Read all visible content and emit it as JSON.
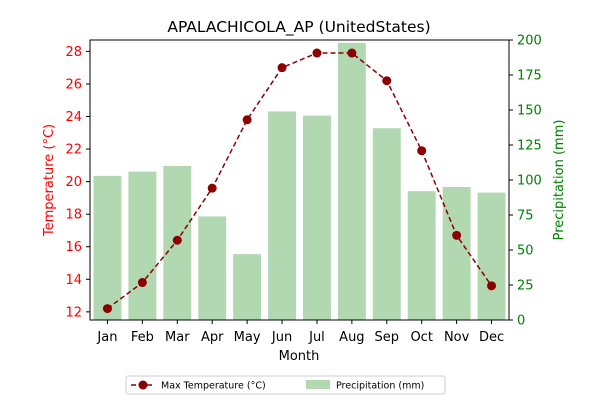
{
  "chart_data": {
    "type": "bar+line",
    "title": "APALACHICOLA_AP (UnitedStates)",
    "xlabel": "Month",
    "ylabel_left": "Temperature (°C)",
    "ylabel_right": "Precipitation (mm)",
    "categories": [
      "Jan",
      "Feb",
      "Mar",
      "Apr",
      "May",
      "Jun",
      "Jul",
      "Aug",
      "Sep",
      "Oct",
      "Nov",
      "Dec"
    ],
    "temperature": {
      "name": "Max Temperature (°C)",
      "type": "line",
      "axis": "left",
      "color": "#8b0000",
      "values": [
        12.2,
        13.8,
        16.4,
        19.6,
        23.8,
        27.0,
        27.9,
        27.9,
        26.2,
        21.9,
        16.7,
        13.6
      ]
    },
    "precipitation": {
      "name": "Precipitation (mm)",
      "type": "bar",
      "axis": "right",
      "color": "#b2d8b2",
      "values": [
        103,
        106,
        110,
        74,
        47,
        149,
        146,
        198,
        137,
        92,
        95,
        91
      ]
    },
    "ylim_left": [
      11.5,
      28.7
    ],
    "yticks_left": [
      "12",
      "14",
      "16",
      "18",
      "20",
      "22",
      "24",
      "26",
      "28"
    ],
    "ylim_right": [
      0,
      200
    ],
    "yticks_right": [
      "0",
      "25",
      "50",
      "75",
      "100",
      "125",
      "150",
      "175",
      "200"
    ],
    "left_axis_color": "#ff0000",
    "right_axis_color": "#008000",
    "grid": false,
    "legend_position": "bottom-center"
  }
}
